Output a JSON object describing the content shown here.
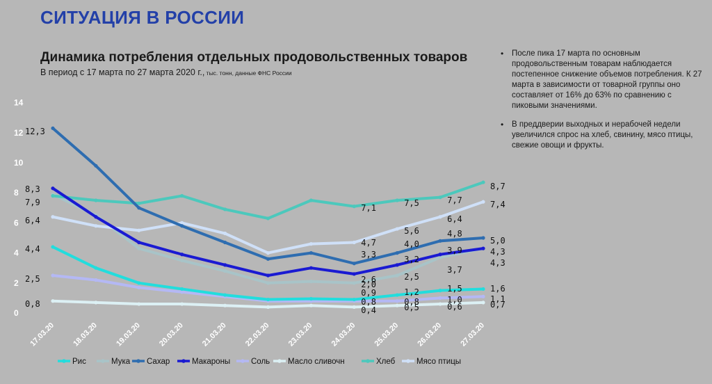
{
  "page": {
    "title": "СИТУАЦИЯ В РОССИИ"
  },
  "notes": [
    "После пика 17 марта по основным продовольственным товарам наблюдается постепенное снижение объемов потребления. К 27 марта в зависимости от товарной группы оно составляет от 16% до 63% по сравнению с пиковыми значениями.",
    "В преддверии выходных и нерабочей недели увеличился спрос на хлеб, свинину, мясо птицы, свежие овощи и фрукты."
  ],
  "colors": {
    "background": "#b7b7b7",
    "title": "#2340a8",
    "Рис": "#22dddd",
    "Мука": "#a8c4c8",
    "Сахар": "#2e6db0",
    "Макароны": "#1a1ad2",
    "Соль": "#b4b8f4",
    "Масло сливочн": "#dcf0f4",
    "Хлеб": "#4cc8bc",
    "Мясо птицы": "#cfe0f8"
  },
  "chart_data": {
    "type": "line",
    "title": "Динамика потребления отдельных продовольственных товаров",
    "subtitle": "В период с 17 марта по 27 марта 2020 г.,",
    "subtitle_note": " тыс. тонн, данные ФНС России",
    "x": [
      "17.03.20",
      "18.03.20",
      "19.03.20",
      "20.03.20",
      "21.03.20",
      "22.03.20",
      "23.03.20",
      "24.03.20",
      "25.03.20",
      "26.03.20",
      "27.03.20"
    ],
    "ylim": [
      0,
      14
    ],
    "yticks": [
      "0",
      "2",
      "4",
      "6",
      "8",
      "10",
      "12",
      "14"
    ],
    "legend_position": "bottom",
    "series": [
      {
        "name": "Рис",
        "values": [
          4.4,
          3.0,
          2.0,
          1.6,
          1.2,
          0.9,
          0.95,
          0.9,
          1.2,
          1.5,
          1.6
        ]
      },
      {
        "name": "Мука",
        "values": [
          7.9,
          6.5,
          4.3,
          3.5,
          2.8,
          2.0,
          2.1,
          2.0,
          2.5,
          3.7,
          4.3
        ]
      },
      {
        "name": "Сахар",
        "values": [
          12.3,
          9.8,
          7.0,
          5.8,
          4.7,
          3.6,
          4.0,
          3.3,
          4.0,
          4.8,
          5.0
        ]
      },
      {
        "name": "Макароны",
        "values": [
          8.3,
          6.4,
          4.7,
          3.9,
          3.2,
          2.5,
          3.0,
          2.6,
          3.2,
          3.9,
          4.3
        ]
      },
      {
        "name": "Соль",
        "values": [
          2.5,
          2.2,
          1.7,
          1.4,
          1.1,
          0.8,
          0.8,
          0.8,
          0.8,
          1.0,
          1.1
        ]
      },
      {
        "name": "Масло сливочн",
        "values": [
          0.8,
          0.7,
          0.6,
          0.6,
          0.5,
          0.4,
          0.5,
          0.4,
          0.5,
          0.6,
          0.7
        ]
      },
      {
        "name": "Хлеб",
        "values": [
          7.8,
          7.5,
          7.3,
          7.8,
          6.9,
          6.3,
          7.5,
          7.1,
          7.5,
          7.7,
          8.7
        ]
      },
      {
        "name": "Мясо птицы",
        "values": [
          6.4,
          5.8,
          5.5,
          6.0,
          5.3,
          4.0,
          4.6,
          4.7,
          5.6,
          6.4,
          7.4
        ]
      }
    ],
    "data_labels": [
      {
        "series": "Сахар",
        "index": 0,
        "text": "12,3"
      },
      {
        "series": "Макароны",
        "index": 0,
        "text": "8,3"
      },
      {
        "series": "Мука",
        "index": 0,
        "text": "7,9"
      },
      {
        "series": "Мясо птицы",
        "index": 0,
        "text": "6,4"
      },
      {
        "series": "Рис",
        "index": 0,
        "text": "4,4"
      },
      {
        "series": "Соль",
        "index": 0,
        "text": "2,5"
      },
      {
        "series": "Масло сливочн",
        "index": 0,
        "text": "0,8"
      },
      {
        "series": "Хлеб",
        "index": 7,
        "text": "7,1"
      },
      {
        "series": "Мясо птицы",
        "index": 7,
        "text": "4,7"
      },
      {
        "series": "Сахар",
        "index": 7,
        "text": "3,3"
      },
      {
        "series": "Макароны",
        "index": 7,
        "text": "2,6"
      },
      {
        "series": "Мука",
        "index": 7,
        "text": "2,0"
      },
      {
        "series": "Рис",
        "index": 7,
        "text": "0,9"
      },
      {
        "series": "Соль",
        "index": 7,
        "text": "0,8"
      },
      {
        "series": "Масло сливочн",
        "index": 7,
        "text": "0,4"
      },
      {
        "series": "Хлеб",
        "index": 8,
        "text": "7,5"
      },
      {
        "series": "Мясо птицы",
        "index": 8,
        "text": "5,6"
      },
      {
        "series": "Сахар",
        "index": 8,
        "text": "4,0"
      },
      {
        "series": "Макароны",
        "index": 8,
        "text": "3,2"
      },
      {
        "series": "Мука",
        "index": 8,
        "text": "2,5"
      },
      {
        "series": "Рис",
        "index": 8,
        "text": "1,2"
      },
      {
        "series": "Соль",
        "index": 8,
        "text": "0,8"
      },
      {
        "series": "Масло сливочн",
        "index": 8,
        "text": "0,5"
      },
      {
        "series": "Хлеб",
        "index": 9,
        "text": "7,7"
      },
      {
        "series": "Мясо птицы",
        "index": 9,
        "text": "6,4"
      },
      {
        "series": "Сахар",
        "index": 9,
        "text": "4,8"
      },
      {
        "series": "Макароны",
        "index": 9,
        "text": "3,9"
      },
      {
        "series": "Мука",
        "index": 9,
        "text": "3,7"
      },
      {
        "series": "Рис",
        "index": 9,
        "text": "1,5"
      },
      {
        "series": "Соль",
        "index": 9,
        "text": "1,0"
      },
      {
        "series": "Масло сливочн",
        "index": 9,
        "text": "0,6"
      },
      {
        "series": "Хлеб",
        "index": 10,
        "text": "8,7"
      },
      {
        "series": "Мясо птицы",
        "index": 10,
        "text": "7,4"
      },
      {
        "series": "Сахар",
        "index": 10,
        "text": "5,0"
      },
      {
        "series": "Макароны",
        "index": 10,
        "text": "4,3"
      },
      {
        "series": "Мука",
        "index": 10,
        "text": "4,3"
      },
      {
        "series": "Рис",
        "index": 10,
        "text": "1,6"
      },
      {
        "series": "Соль",
        "index": 10,
        "text": "1,1"
      },
      {
        "series": "Масло сливочн",
        "index": 10,
        "text": "0,7"
      }
    ]
  }
}
